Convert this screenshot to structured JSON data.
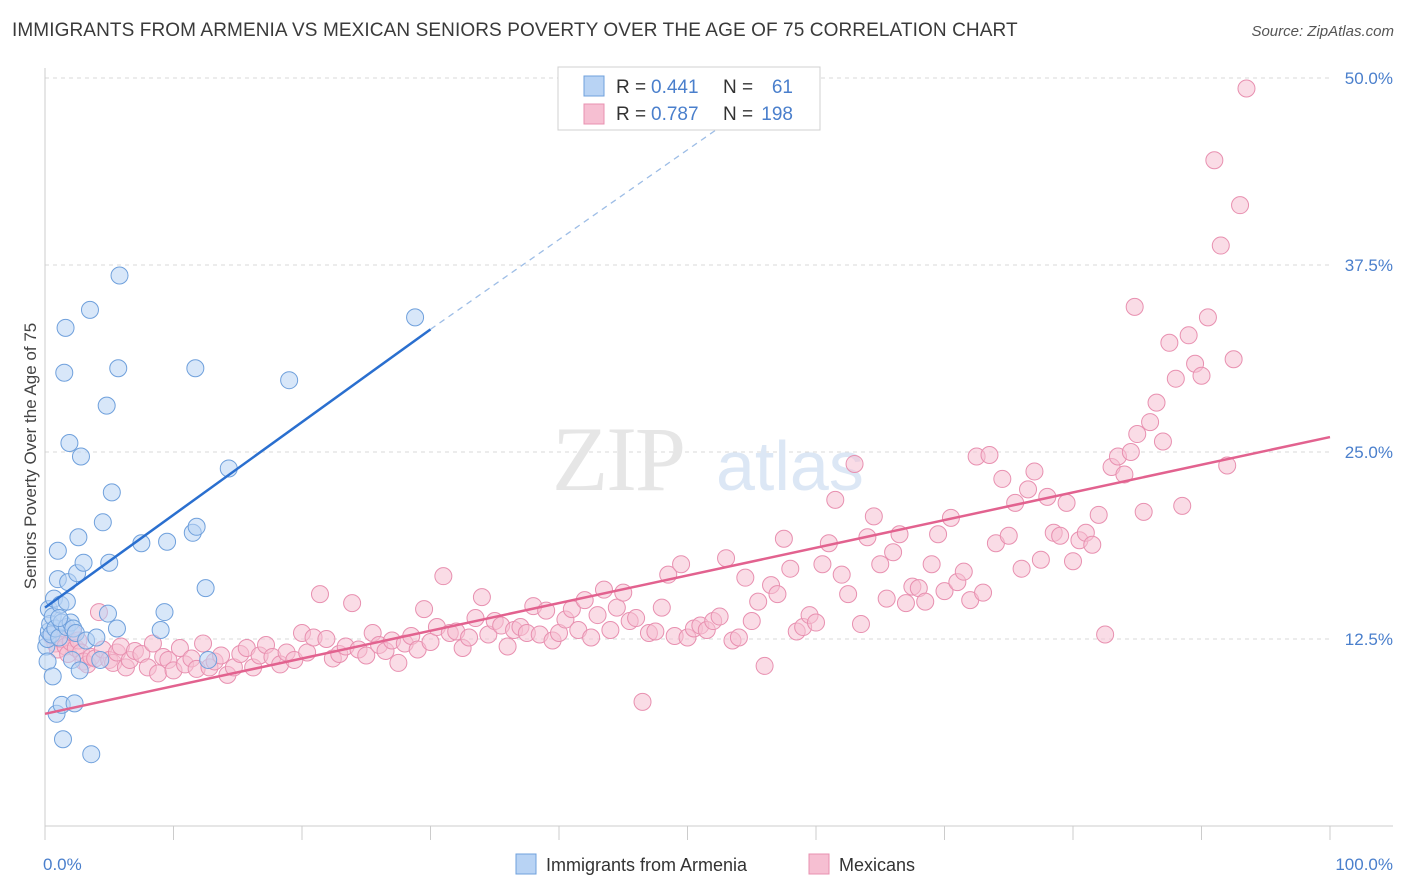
{
  "title": "IMMIGRANTS FROM ARMENIA VS MEXICAN SENIORS POVERTY OVER THE AGE OF 75 CORRELATION CHART",
  "source": "Source: ZipAtlas.com",
  "watermark": {
    "zip": "ZIP",
    "atlas": "atlas"
  },
  "colors": {
    "blue_fill": "#b8d3f4",
    "blue_stroke": "#6fa0dc",
    "blue_line": "#2a6fcf",
    "pink_fill": "#f6bfd2",
    "pink_stroke": "#e890b0",
    "pink_line": "#e2628f",
    "accent_text": "#4a7fcc",
    "grid": "#d9d9d9"
  },
  "legend": {
    "rows": [
      {
        "r_label": "R = ",
        "r_value": "0.441",
        "n_label": "N = ",
        "n_value": "61"
      },
      {
        "r_label": "R = ",
        "r_value": "0.787",
        "n_label": "N = ",
        "n_value": "198"
      }
    ]
  },
  "chart_data": {
    "type": "scatter",
    "title": "IMMIGRANTS FROM ARMENIA VS MEXICAN SENIORS POVERTY OVER THE AGE OF 75 CORRELATION CHART",
    "xlabel": "",
    "ylabel": "Seniors Poverty Over the Age of 75",
    "xlim": [
      0,
      100
    ],
    "ylim": [
      0,
      50
    ],
    "x_tick_labels": [
      "0.0%",
      "100.0%"
    ],
    "y_ticks": [
      12.5,
      25.0,
      37.5,
      50.0
    ],
    "y_tick_labels": [
      "12.5%",
      "25.0%",
      "37.5%",
      "50.0%"
    ],
    "grid": true,
    "legend_position": "top-center",
    "series": [
      {
        "name": "Immigrants from Armenia",
        "trend": {
          "x": [
            0,
            30
          ],
          "y": [
            14.6,
            33.2
          ],
          "dashed_to": {
            "x": 53,
            "y": 47.0
          }
        },
        "points": [
          [
            0.1,
            12.0
          ],
          [
            0.2,
            11.0
          ],
          [
            0.2,
            12.5
          ],
          [
            0.3,
            13.0
          ],
          [
            0.3,
            14.5
          ],
          [
            0.4,
            13.5
          ],
          [
            0.5,
            12.8
          ],
          [
            0.6,
            10.0
          ],
          [
            0.6,
            14.0
          ],
          [
            0.7,
            15.2
          ],
          [
            0.8,
            13.2
          ],
          [
            0.9,
            7.5
          ],
          [
            1.0,
            18.4
          ],
          [
            1.0,
            16.5
          ],
          [
            1.1,
            12.6
          ],
          [
            1.2,
            14.8
          ],
          [
            1.3,
            13.6
          ],
          [
            1.3,
            8.1
          ],
          [
            1.4,
            5.8
          ],
          [
            1.5,
            30.3
          ],
          [
            1.6,
            33.3
          ],
          [
            1.7,
            13.3
          ],
          [
            1.7,
            15.0
          ],
          [
            1.8,
            16.3
          ],
          [
            1.9,
            25.6
          ],
          [
            2.0,
            13.6
          ],
          [
            2.1,
            11.1
          ],
          [
            2.2,
            13.2
          ],
          [
            2.3,
            8.2
          ],
          [
            2.4,
            12.9
          ],
          [
            2.5,
            16.9
          ],
          [
            2.6,
            19.3
          ],
          [
            2.7,
            10.4
          ],
          [
            2.8,
            24.7
          ],
          [
            3.0,
            17.6
          ],
          [
            3.2,
            12.4
          ],
          [
            3.5,
            34.5
          ],
          [
            3.6,
            4.8
          ],
          [
            4.0,
            12.6
          ],
          [
            4.3,
            11.1
          ],
          [
            4.5,
            20.3
          ],
          [
            4.9,
            14.2
          ],
          [
            5.0,
            17.6
          ],
          [
            4.8,
            28.1
          ],
          [
            5.2,
            22.3
          ],
          [
            5.6,
            13.2
          ],
          [
            5.7,
            30.6
          ],
          [
            5.8,
            36.8
          ],
          [
            7.5,
            18.9
          ],
          [
            9.0,
            13.1
          ],
          [
            9.3,
            14.3
          ],
          [
            9.5,
            19.0
          ],
          [
            11.5,
            19.6
          ],
          [
            11.7,
            30.6
          ],
          [
            11.8,
            20.0
          ],
          [
            12.5,
            15.9
          ],
          [
            12.7,
            11.1
          ],
          [
            14.3,
            23.9
          ],
          [
            19.0,
            29.8
          ],
          [
            28.8,
            34.0
          ],
          [
            1.1,
            13.9
          ]
        ]
      },
      {
        "name": "Mexicans",
        "trend": {
          "x": [
            0,
            100
          ],
          "y": [
            7.5,
            26.0
          ]
        },
        "points": [
          [
            0.5,
            12.7
          ],
          [
            0.8,
            12.2
          ],
          [
            1.0,
            11.8
          ],
          [
            1.2,
            12.5
          ],
          [
            1.5,
            13.2
          ],
          [
            1.6,
            12.0
          ],
          [
            1.8,
            11.5
          ],
          [
            2.0,
            12.3
          ],
          [
            2.2,
            12.9
          ],
          [
            2.4,
            11.9
          ],
          [
            2.6,
            12.4
          ],
          [
            2.8,
            11.6
          ],
          [
            3.0,
            11.0
          ],
          [
            3.3,
            10.8
          ],
          [
            3.6,
            11.3
          ],
          [
            3.9,
            11.2
          ],
          [
            4.2,
            14.3
          ],
          [
            4.5,
            11.8
          ],
          [
            5.0,
            11.1
          ],
          [
            5.3,
            10.9
          ],
          [
            5.6,
            11.6
          ],
          [
            5.9,
            12.0
          ],
          [
            6.3,
            10.6
          ],
          [
            6.6,
            11.1
          ],
          [
            7.0,
            11.7
          ],
          [
            7.5,
            11.5
          ],
          [
            8.0,
            10.6
          ],
          [
            8.4,
            12.2
          ],
          [
            8.8,
            10.2
          ],
          [
            9.2,
            11.3
          ],
          [
            9.6,
            11.1
          ],
          [
            10.0,
            10.4
          ],
          [
            10.5,
            11.9
          ],
          [
            10.9,
            10.8
          ],
          [
            11.4,
            11.2
          ],
          [
            11.8,
            10.5
          ],
          [
            12.3,
            12.2
          ],
          [
            12.8,
            10.6
          ],
          [
            13.2,
            11.0
          ],
          [
            13.7,
            11.4
          ],
          [
            14.2,
            10.1
          ],
          [
            14.7,
            10.6
          ],
          [
            15.2,
            11.5
          ],
          [
            15.7,
            11.9
          ],
          [
            16.2,
            10.6
          ],
          [
            16.7,
            11.4
          ],
          [
            17.2,
            12.1
          ],
          [
            17.7,
            11.3
          ],
          [
            18.3,
            10.8
          ],
          [
            18.8,
            11.6
          ],
          [
            19.4,
            11.1
          ],
          [
            20.0,
            12.9
          ],
          [
            20.4,
            11.6
          ],
          [
            20.9,
            12.6
          ],
          [
            21.4,
            15.5
          ],
          [
            21.9,
            12.5
          ],
          [
            22.4,
            11.2
          ],
          [
            22.9,
            11.5
          ],
          [
            23.4,
            12.0
          ],
          [
            23.9,
            14.9
          ],
          [
            24.4,
            11.8
          ],
          [
            25.0,
            11.4
          ],
          [
            25.5,
            12.9
          ],
          [
            26.0,
            12.1
          ],
          [
            26.5,
            11.7
          ],
          [
            27.0,
            12.4
          ],
          [
            27.5,
            10.9
          ],
          [
            28.0,
            12.2
          ],
          [
            28.5,
            12.7
          ],
          [
            29.0,
            11.8
          ],
          [
            29.5,
            14.5
          ],
          [
            30.0,
            12.3
          ],
          [
            30.5,
            13.3
          ],
          [
            31.0,
            16.7
          ],
          [
            31.5,
            12.9
          ],
          [
            32.0,
            13.0
          ],
          [
            32.5,
            11.9
          ],
          [
            33.0,
            12.6
          ],
          [
            33.5,
            13.9
          ],
          [
            34.0,
            15.3
          ],
          [
            34.5,
            12.8
          ],
          [
            35.0,
            13.7
          ],
          [
            35.5,
            13.4
          ],
          [
            36.0,
            12.0
          ],
          [
            36.5,
            13.1
          ],
          [
            37.0,
            13.3
          ],
          [
            37.5,
            12.9
          ],
          [
            38.0,
            14.7
          ],
          [
            38.5,
            12.8
          ],
          [
            39.0,
            14.4
          ],
          [
            39.5,
            12.4
          ],
          [
            40.0,
            12.9
          ],
          [
            40.5,
            13.8
          ],
          [
            41.0,
            14.5
          ],
          [
            41.5,
            13.1
          ],
          [
            42.0,
            15.1
          ],
          [
            42.5,
            12.6
          ],
          [
            43.0,
            14.1
          ],
          [
            43.5,
            15.8
          ],
          [
            44.0,
            13.1
          ],
          [
            44.5,
            14.6
          ],
          [
            45.0,
            15.6
          ],
          [
            45.5,
            13.7
          ],
          [
            46.0,
            13.9
          ],
          [
            46.5,
            8.3
          ],
          [
            47.0,
            12.9
          ],
          [
            47.5,
            13.0
          ],
          [
            48.0,
            14.6
          ],
          [
            48.5,
            16.8
          ],
          [
            49.0,
            12.7
          ],
          [
            49.5,
            17.5
          ],
          [
            50.0,
            12.6
          ],
          [
            50.5,
            13.2
          ],
          [
            51.0,
            13.4
          ],
          [
            51.5,
            13.1
          ],
          [
            52.0,
            13.7
          ],
          [
            52.5,
            14.0
          ],
          [
            53.0,
            17.9
          ],
          [
            53.5,
            12.4
          ],
          [
            54.0,
            12.6
          ],
          [
            54.5,
            16.6
          ],
          [
            55.0,
            13.7
          ],
          [
            55.5,
            15.0
          ],
          [
            56.0,
            10.7
          ],
          [
            56.5,
            16.1
          ],
          [
            57.0,
            15.5
          ],
          [
            57.5,
            19.2
          ],
          [
            58.0,
            17.2
          ],
          [
            58.5,
            13.0
          ],
          [
            59.0,
            13.3
          ],
          [
            59.5,
            14.1
          ],
          [
            60.0,
            13.6
          ],
          [
            60.5,
            17.5
          ],
          [
            61.0,
            18.9
          ],
          [
            61.5,
            21.8
          ],
          [
            62.0,
            16.8
          ],
          [
            62.5,
            15.5
          ],
          [
            63.0,
            24.2
          ],
          [
            63.5,
            13.5
          ],
          [
            64.0,
            19.3
          ],
          [
            64.5,
            20.7
          ],
          [
            65.0,
            17.5
          ],
          [
            65.5,
            15.2
          ],
          [
            66.0,
            18.3
          ],
          [
            66.5,
            19.5
          ],
          [
            67.0,
            14.9
          ],
          [
            67.5,
            16.0
          ],
          [
            68.0,
            15.9
          ],
          [
            68.5,
            15.0
          ],
          [
            69.0,
            17.5
          ],
          [
            69.5,
            19.5
          ],
          [
            70.0,
            15.7
          ],
          [
            70.5,
            20.6
          ],
          [
            71.0,
            16.3
          ],
          [
            71.5,
            17.0
          ],
          [
            72.0,
            15.1
          ],
          [
            72.5,
            24.7
          ],
          [
            73.0,
            15.6
          ],
          [
            73.5,
            24.8
          ],
          [
            74.0,
            18.9
          ],
          [
            74.5,
            23.2
          ],
          [
            75.0,
            19.4
          ],
          [
            75.5,
            21.6
          ],
          [
            76.0,
            17.2
          ],
          [
            76.5,
            22.5
          ],
          [
            77.0,
            23.7
          ],
          [
            77.5,
            17.8
          ],
          [
            78.0,
            22.0
          ],
          [
            78.5,
            19.6
          ],
          [
            79.0,
            19.4
          ],
          [
            79.5,
            21.6
          ],
          [
            80.0,
            17.7
          ],
          [
            80.5,
            19.1
          ],
          [
            81.0,
            19.6
          ],
          [
            81.5,
            18.8
          ],
          [
            82.0,
            20.8
          ],
          [
            82.5,
            12.8
          ],
          [
            83.0,
            24.0
          ],
          [
            83.5,
            24.7
          ],
          [
            84.0,
            23.5
          ],
          [
            84.5,
            25.0
          ],
          [
            85.0,
            26.2
          ],
          [
            85.5,
            21.0
          ],
          [
            86.0,
            27.0
          ],
          [
            86.5,
            28.3
          ],
          [
            87.0,
            25.7
          ],
          [
            87.5,
            32.3
          ],
          [
            88.0,
            29.9
          ],
          [
            88.5,
            21.4
          ],
          [
            89.0,
            32.8
          ],
          [
            89.5,
            30.9
          ],
          [
            90.0,
            30.1
          ],
          [
            90.5,
            34.0
          ],
          [
            91.0,
            44.5
          ],
          [
            91.5,
            38.8
          ],
          [
            92.0,
            24.1
          ],
          [
            92.5,
            31.2
          ],
          [
            93.0,
            41.5
          ],
          [
            93.5,
            49.3
          ],
          [
            84.8,
            34.7
          ]
        ]
      }
    ],
    "legend_entries": [
      "Immigrants from Armenia",
      "Mexicans"
    ]
  }
}
